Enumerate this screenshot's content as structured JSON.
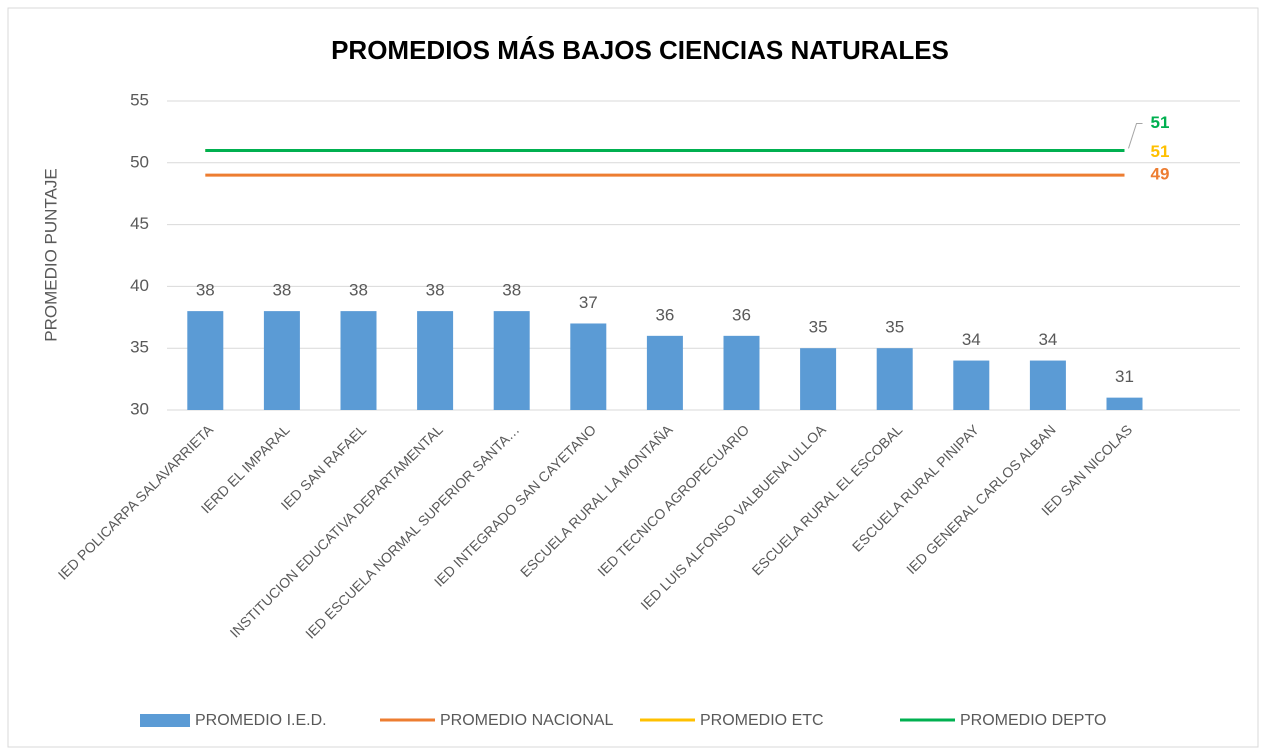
{
  "chart_data": {
    "type": "bar",
    "title": "PROMEDIOS MÁS BAJOS CIENCIAS NATURALES",
    "y_label": "PROMEDIO PUNTAJE",
    "categories": [
      "IED POLICARPA  SALAVARRIETA",
      "IERD EL IMPARAL",
      "IED SAN RAFAEL",
      "INSTITUCION EDUCATIVA DEPARTAMENTAL",
      "IED ESCUELA NORMAL SUPERIOR SANTA…",
      "IED INTEGRADO SAN CAYETANO",
      "ESCUELA RURAL LA MONTAÑA",
      "IED TECNICO AGROPECUARIO",
      "IED LUIS ALFONSO VALBUENA ULLOA",
      "ESCUELA RURAL  EL ESCOBAL",
      "ESCUELA RURAL  PINIPAY",
      "IED GENERAL CARLOS ALBAN",
      "IED SAN NICOLAS"
    ],
    "series": [
      {
        "name": "PROMEDIO I.E.D.",
        "type": "bar",
        "color": "#5b9bd5",
        "values": [
          38,
          38,
          38,
          38,
          38,
          37,
          36,
          36,
          35,
          35,
          34,
          34,
          31
        ]
      },
      {
        "name": "PROMEDIO NACIONAL",
        "type": "line",
        "color": "#ed7d31",
        "values": [
          49,
          49,
          49,
          49,
          49,
          49,
          49,
          49,
          49,
          49,
          49,
          49,
          49
        ]
      },
      {
        "name": "PROMEDIO ETC",
        "type": "line",
        "color": "#ffc000",
        "values": [
          51,
          51,
          51,
          51,
          51,
          51,
          51,
          51,
          51,
          51,
          51,
          51,
          51
        ]
      },
      {
        "name": "PROMEDIO DEPTO",
        "type": "line",
        "color": "#00b050",
        "values": [
          51,
          51,
          51,
          51,
          51,
          51,
          51,
          51,
          51,
          51,
          51,
          51,
          51
        ]
      }
    ],
    "ylim": [
      30,
      55
    ],
    "yticks": [
      30,
      35,
      40,
      45,
      50,
      55
    ],
    "grid": true,
    "legend": "bottom"
  }
}
